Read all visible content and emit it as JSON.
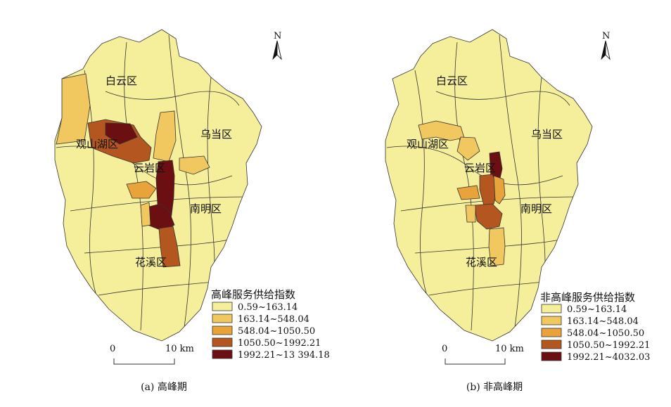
{
  "legend_colors": [
    "#f5ee9a",
    "#f1c85f",
    "#e8a33a",
    "#b4561f",
    "#6b0f12"
  ],
  "panels": [
    {
      "caption": "(a) 高峰期",
      "north": "N",
      "legend_title": "高峰服务供给指数",
      "classes": [
        "0.59~163.14",
        "163.14~548.04",
        "548.04~1050.50",
        "1050.50~1992.21",
        "1992.21~13 394.18"
      ],
      "scale_zero": "0",
      "scale_end": "10 km",
      "districts": {
        "baiyun": "白云区",
        "guanshanhu": "观山湖区",
        "wudang": "乌当区",
        "yunyan": "云岩区",
        "nanming": "南明区",
        "huaxi": "花溪区"
      }
    },
    {
      "caption": "(b) 非高峰期",
      "north": "N",
      "legend_title": "非高峰服务供给指数",
      "classes": [
        "0.59~163.14",
        "163.14~548.04",
        "548.04~1050.50",
        "1050.50~1992.21",
        "1992.21~4032.03"
      ],
      "scale_zero": "0",
      "scale_end": "10 km",
      "districts": {
        "baiyun": "白云区",
        "guanshanhu": "观山湖区",
        "wudang": "乌当区",
        "yunyan": "云岩区",
        "nanming": "南明区",
        "huaxi": "花溪区"
      }
    }
  ]
}
